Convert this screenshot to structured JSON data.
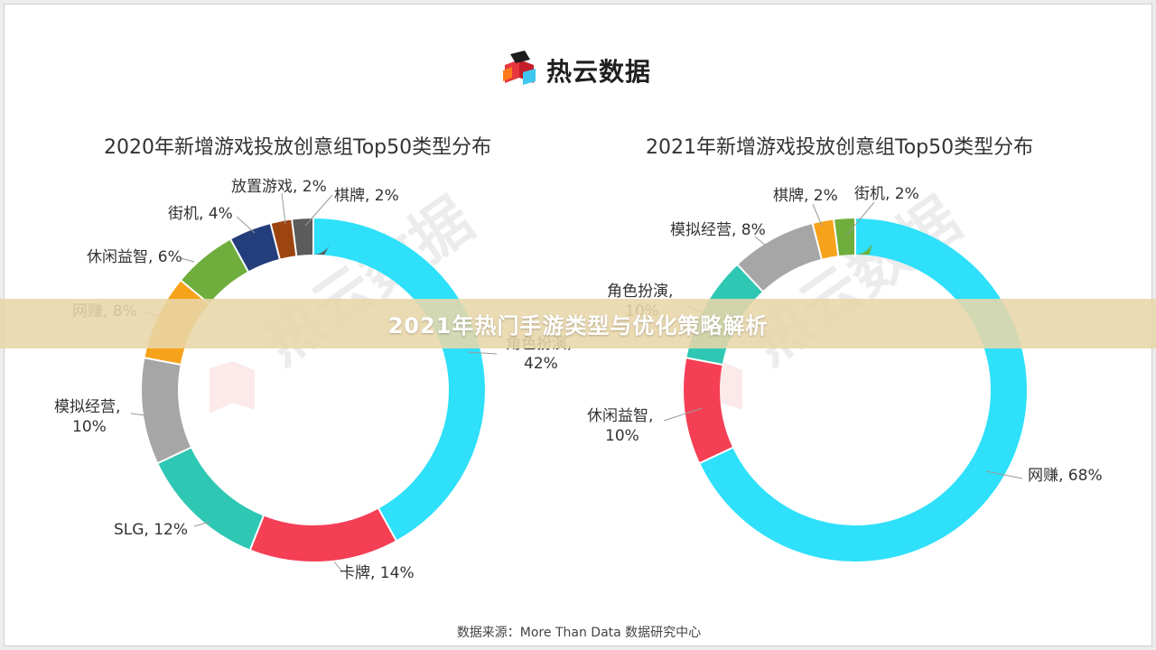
{
  "brand": {
    "name": "热云数据",
    "watermark": "热云数据"
  },
  "banner": {
    "title": "2021年热门手游类型与优化策略解析"
  },
  "source": "数据来源：More Than Data 数据研究中心",
  "chart_data": [
    {
      "type": "pie",
      "style": "donut",
      "title": "2020年新增游戏投放创意组Top50类型分布",
      "slices": [
        {
          "label": "角色扮演",
          "value": 42,
          "value_text": "42%",
          "color": "#2ee0fa"
        },
        {
          "label": "卡牌",
          "value": 14,
          "value_text": "14%",
          "color": "#f43f55"
        },
        {
          "label": "SLG",
          "value": 12,
          "value_text": "12%",
          "color": "#2ec7b4"
        },
        {
          "label": "模拟经营",
          "value": 10,
          "value_text": "10%",
          "color": "#a6a6a6"
        },
        {
          "label": "网赚",
          "value": 8,
          "value_text": "8%",
          "color": "#f7a21b"
        },
        {
          "label": "休闲益智",
          "value": 6,
          "value_text": "6%",
          "color": "#6fae3c"
        },
        {
          "label": "街机",
          "value": 4,
          "value_text": "4%",
          "color": "#233e7a"
        },
        {
          "label": "放置游戏",
          "value": 2,
          "value_text": "2%",
          "color": "#9c4510"
        },
        {
          "label": "棋牌",
          "value": 2,
          "value_text": "2%",
          "color": "#5c5c5c"
        }
      ]
    },
    {
      "type": "pie",
      "style": "donut",
      "title": "2021年新增游戏投放创意组Top50类型分布",
      "slices": [
        {
          "label": "网赚",
          "value": 68,
          "value_text": "68%",
          "color": "#2ee0fa"
        },
        {
          "label": "休闲益智",
          "value": 10,
          "value_text": "10%",
          "color": "#f43f55"
        },
        {
          "label": "角色扮演",
          "value": 10,
          "value_text": "10%",
          "color": "#2ec7b4"
        },
        {
          "label": "模拟经营",
          "value": 8,
          "value_text": "8%",
          "color": "#a6a6a6"
        },
        {
          "label": "棋牌",
          "value": 2,
          "value_text": "2%",
          "color": "#f7a21b"
        },
        {
          "label": "街机",
          "value": 2,
          "value_text": "2%",
          "color": "#6fae3c"
        }
      ]
    }
  ]
}
